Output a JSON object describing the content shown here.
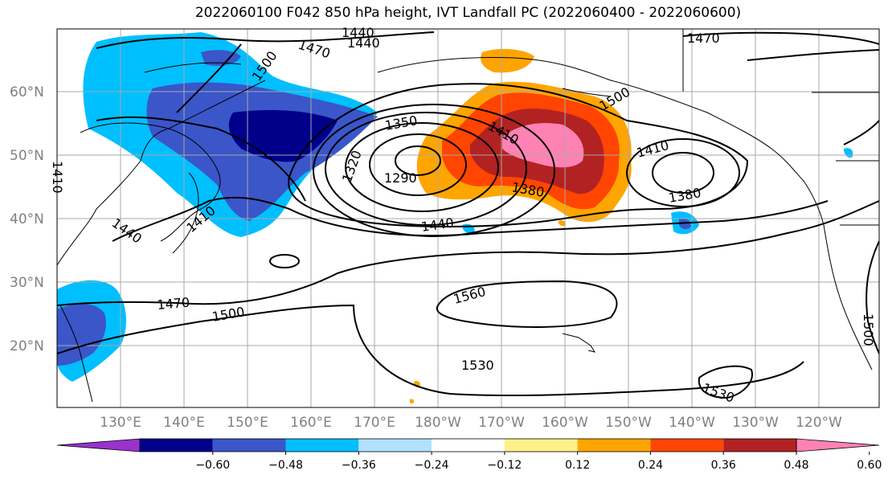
{
  "title": "2022060100 F042 850 hPa height, IVT Landfall PC (2022060400 - 2022060600)",
  "lat_labels": [
    "60°N",
    "50°N",
    "40°N",
    "30°N",
    "20°N"
  ],
  "lon_labels": [
    "130°E",
    "140°E",
    "150°E",
    "160°E",
    "170°E",
    "180°W",
    "170°W",
    "160°W",
    "150°W",
    "140°W",
    "130°W",
    "120°W"
  ],
  "contour_labels": {
    "c1440_top_a": "1440",
    "c1440_top_b": "1440",
    "c1470_top_a": "1470",
    "c1470_top_b": "1470",
    "c1500_nw": "1500",
    "c1410_w": "1410",
    "c1350_low": "1350",
    "c1320_low": "1320",
    "c1290_low": "1290",
    "c1410_low": "1410",
    "c1380_low": "1380",
    "c1410_east": "1410",
    "c1380_east": "1380",
    "c1440_mid": "1440",
    "c1440_w": "1440",
    "c1410_japan": "1410",
    "c1470_sw": "1470",
    "c1500_sw": "1500",
    "c1560_mid": "1560",
    "c1530_mid": "1530",
    "c1530_se": "1530",
    "c1500_e": "1500",
    "c1500_ak": "1500"
  },
  "colorbar": {
    "ticks": [
      "−0.60",
      "−0.48",
      "−0.36",
      "−0.24",
      "−0.12",
      "0.12",
      "0.24",
      "0.36",
      "0.48",
      "0.60"
    ],
    "colors": [
      "#9932cc",
      "#00008b",
      "#3a56c8",
      "#00bfff",
      "#b0e2ff",
      "#ffffff",
      "#fff08a",
      "#ffa500",
      "#ff4500",
      "#b22222",
      "#ff82b4"
    ]
  }
}
